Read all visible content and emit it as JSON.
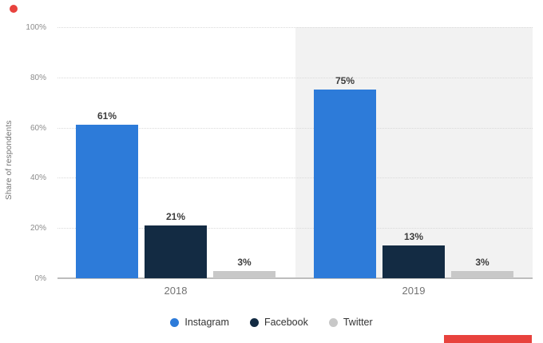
{
  "chart_data": {
    "type": "bar",
    "categories": [
      "2018",
      "2019"
    ],
    "series": [
      {
        "name": "Instagram",
        "values": [
          61,
          75
        ],
        "color": "#2D7BD9"
      },
      {
        "name": "Facebook",
        "values": [
          21,
          13
        ],
        "color": "#132B43"
      },
      {
        "name": "Twitter",
        "values": [
          3,
          3
        ],
        "color": "#C8C8C8"
      }
    ],
    "value_label_suffix": "%",
    "data_labels": [
      [
        "61%",
        "21%",
        "3%"
      ],
      [
        "75%",
        "13%",
        "3%"
      ]
    ],
    "title": "",
    "xlabel": "",
    "ylabel": "Share of respondents",
    "ylim": [
      0,
      100
    ],
    "yticks": [
      {
        "value": 0,
        "label": "0%"
      },
      {
        "value": 20,
        "label": "20%"
      },
      {
        "value": 40,
        "label": "40%"
      },
      {
        "value": 60,
        "label": "60%"
      },
      {
        "value": 80,
        "label": "80%"
      },
      {
        "value": 100,
        "label": "100%"
      }
    ],
    "grid": "horizontal-dotted",
    "legend_position": "bottom",
    "highlighted_category": "2019"
  },
  "colors": {
    "background": "#FFFFFF",
    "highlight_band": "#F2F2F2",
    "gridline": "#D9D9D9",
    "baseline": "#BDBDBD",
    "tick_text": "#8C8C8C",
    "value_label_text": "#3D3D3D",
    "axis_title_text": "#737373",
    "legend_text": "#333333"
  },
  "annotations": {
    "red_dot_color": "#E8423D",
    "red_bar_color": "#E8423D"
  }
}
